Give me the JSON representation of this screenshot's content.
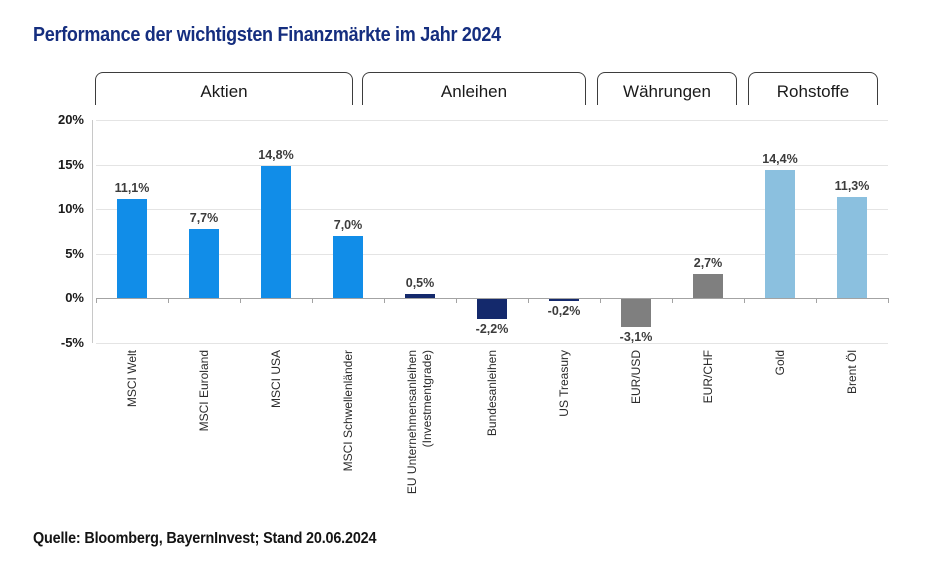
{
  "chart_data": {
    "type": "bar",
    "title": "Performance der wichtigsten Finanzmärkte im Jahr 2024",
    "source": "Quelle: Bloomberg, BayernInvest; Stand 20.06.2024",
    "ylim": [
      -5,
      20
    ],
    "grid": true,
    "value_suffix": "%",
    "y_ticks": [
      {
        "label": "20%",
        "value": 20
      },
      {
        "label": "15%",
        "value": 15
      },
      {
        "label": "10%",
        "value": 10
      },
      {
        "label": "5%",
        "value": 5
      },
      {
        "label": "0%",
        "value": 0
      },
      {
        "label": "-5%",
        "value": -5
      }
    ],
    "groups": [
      {
        "label": "Aktien",
        "color": "#118DE8",
        "items": [
          {
            "label": "MSCI Welt",
            "value": 11.1,
            "value_label": "11,1%"
          },
          {
            "label": "MSCI Euroland",
            "value": 7.7,
            "value_label": "7,7%"
          },
          {
            "label": "MSCI USA",
            "value": 14.8,
            "value_label": "14,8%"
          },
          {
            "label": "MSCI Schwellenländer",
            "value": 7.0,
            "value_label": "7,0%"
          }
        ]
      },
      {
        "label": "Anleihen",
        "color": "#14296C",
        "items": [
          {
            "label": "EU Unternehmensanleihen (Investmentgrade)",
            "label_lines": [
              "EU Unternehmensanleihen",
              "(Investmentgrade)"
            ],
            "value": 0.5,
            "value_label": "0,5%"
          },
          {
            "label": "Bundesanleihen",
            "value": -2.2,
            "value_label": "-2,2%"
          },
          {
            "label": "US Treasury",
            "value": -0.2,
            "value_label": "-0,2%"
          }
        ]
      },
      {
        "label": "Währungen",
        "color": "#7F7F7F",
        "items": [
          {
            "label": "EUR/USD",
            "value": -3.1,
            "value_label": "-3,1%"
          },
          {
            "label": "EUR/CHF",
            "value": 2.7,
            "value_label": "2,7%"
          }
        ]
      },
      {
        "label": "Rohstoffe",
        "color": "#8BC0DF",
        "items": [
          {
            "label": "Gold",
            "value": 14.4,
            "value_label": "14,4%"
          },
          {
            "label": "Brent Öl",
            "value": 11.3,
            "value_label": "11,3%"
          }
        ]
      }
    ]
  }
}
